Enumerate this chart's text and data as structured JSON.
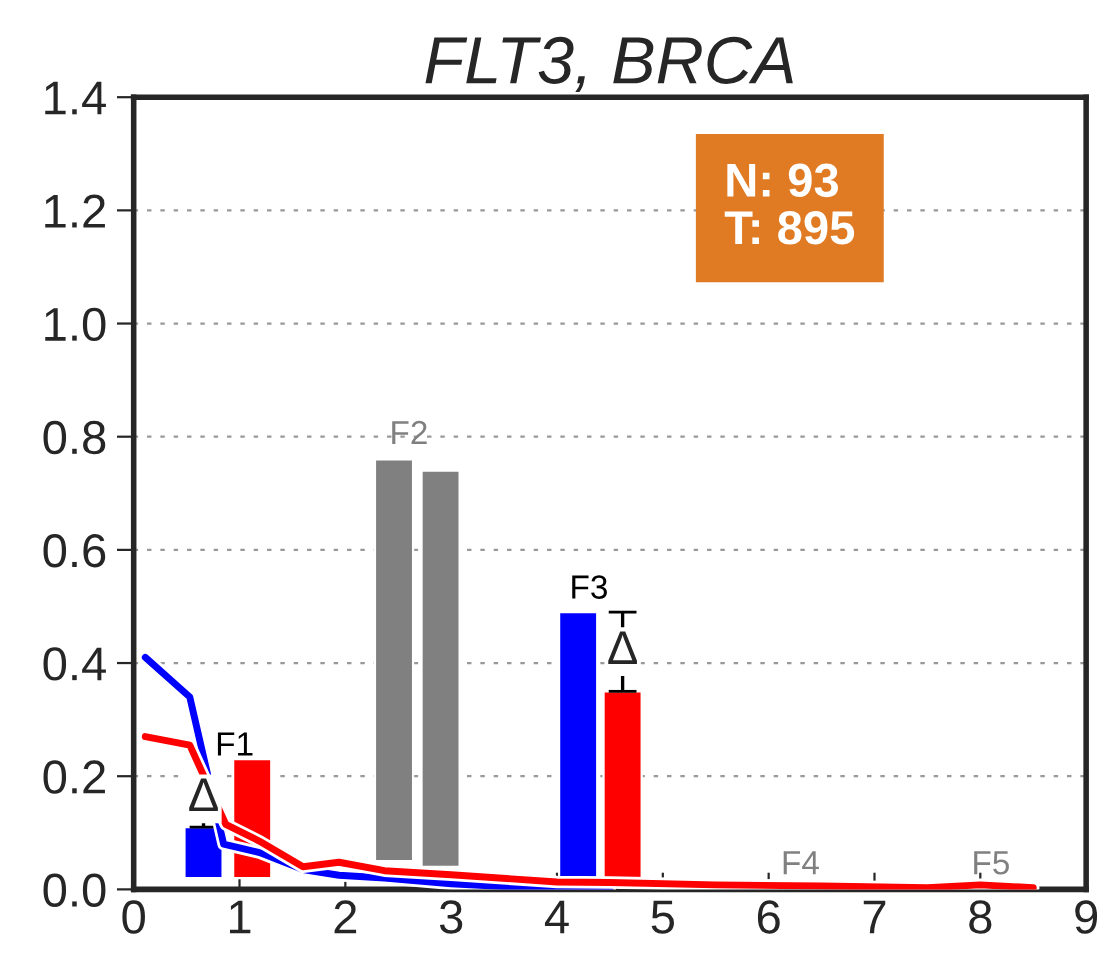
{
  "chart_data": {
    "type": "bar",
    "title": "FLT3, BRCA",
    "xlim": [
      0,
      9
    ],
    "xticks": [
      0,
      1,
      2,
      3,
      4,
      5,
      6,
      7,
      8,
      9
    ],
    "ylim": [
      0,
      1.4
    ],
    "yticks": [
      {
        "value": 0,
        "label": "0.0"
      },
      0.2,
      0.4,
      0.6,
      0.8,
      {
        "value": 1,
        "label": "1.0"
      },
      1.2,
      1.4
    ],
    "grid": "y",
    "series": [
      {
        "color": "#0000ff",
        "x": [
          0.66,
          4.2
        ],
        "values": [
          0.09,
          0.47
        ],
        "base": [
          0.02,
          0.02
        ],
        "errors": [
          [
            0.11,
            0.12
          ],
          null
        ]
      },
      {
        "color": "#ff0000",
        "x": [
          1.12,
          4.62
        ],
        "values": [
          0.21,
          0.33
        ],
        "base": [
          0.02,
          0.02
        ],
        "errors": [
          null,
          [
            0.35,
            0.49
          ]
        ]
      },
      {
        "color": "#808080",
        "x": [
          2.46,
          2.9
        ],
        "values": [
          0.71,
          0.7
        ],
        "base": [
          0.05,
          0.04
        ]
      },
      {
        "type": "line",
        "color": "#0000ff",
        "x": [
          0.11,
          0.53,
          0.85,
          1.19,
          1.6,
          1.94,
          2.37,
          3.0,
          3.5,
          4.0,
          4.5
        ],
        "values": [
          0.41,
          0.34,
          0.08,
          0.065,
          0.035,
          0.025,
          0.02,
          0.01,
          0.005,
          0.003,
          0.002
        ]
      },
      {
        "type": "line",
        "color": "#ff0000",
        "x": [
          0.11,
          0.53,
          0.87,
          1.19,
          1.6,
          1.94,
          2.37,
          3.0,
          4.0,
          4.5,
          5.5,
          6.5,
          7.5,
          8.0,
          8.5
        ],
        "values": [
          0.27,
          0.255,
          0.115,
          0.085,
          0.04,
          0.048,
          0.033,
          0.026,
          0.013,
          0.012,
          0.008,
          0.006,
          0.003,
          0.008,
          0.003
        ]
      }
    ],
    "annotations": [
      "F1",
      {
        "text": "Δ",
        "x": 0.66,
        "y": 0.16
      },
      "F2",
      "F3",
      {
        "text": "Δ",
        "x": 4.62,
        "y": 0.42
      },
      "F4",
      "F5",
      "N: 93\nT: 895"
    ]
  }
}
